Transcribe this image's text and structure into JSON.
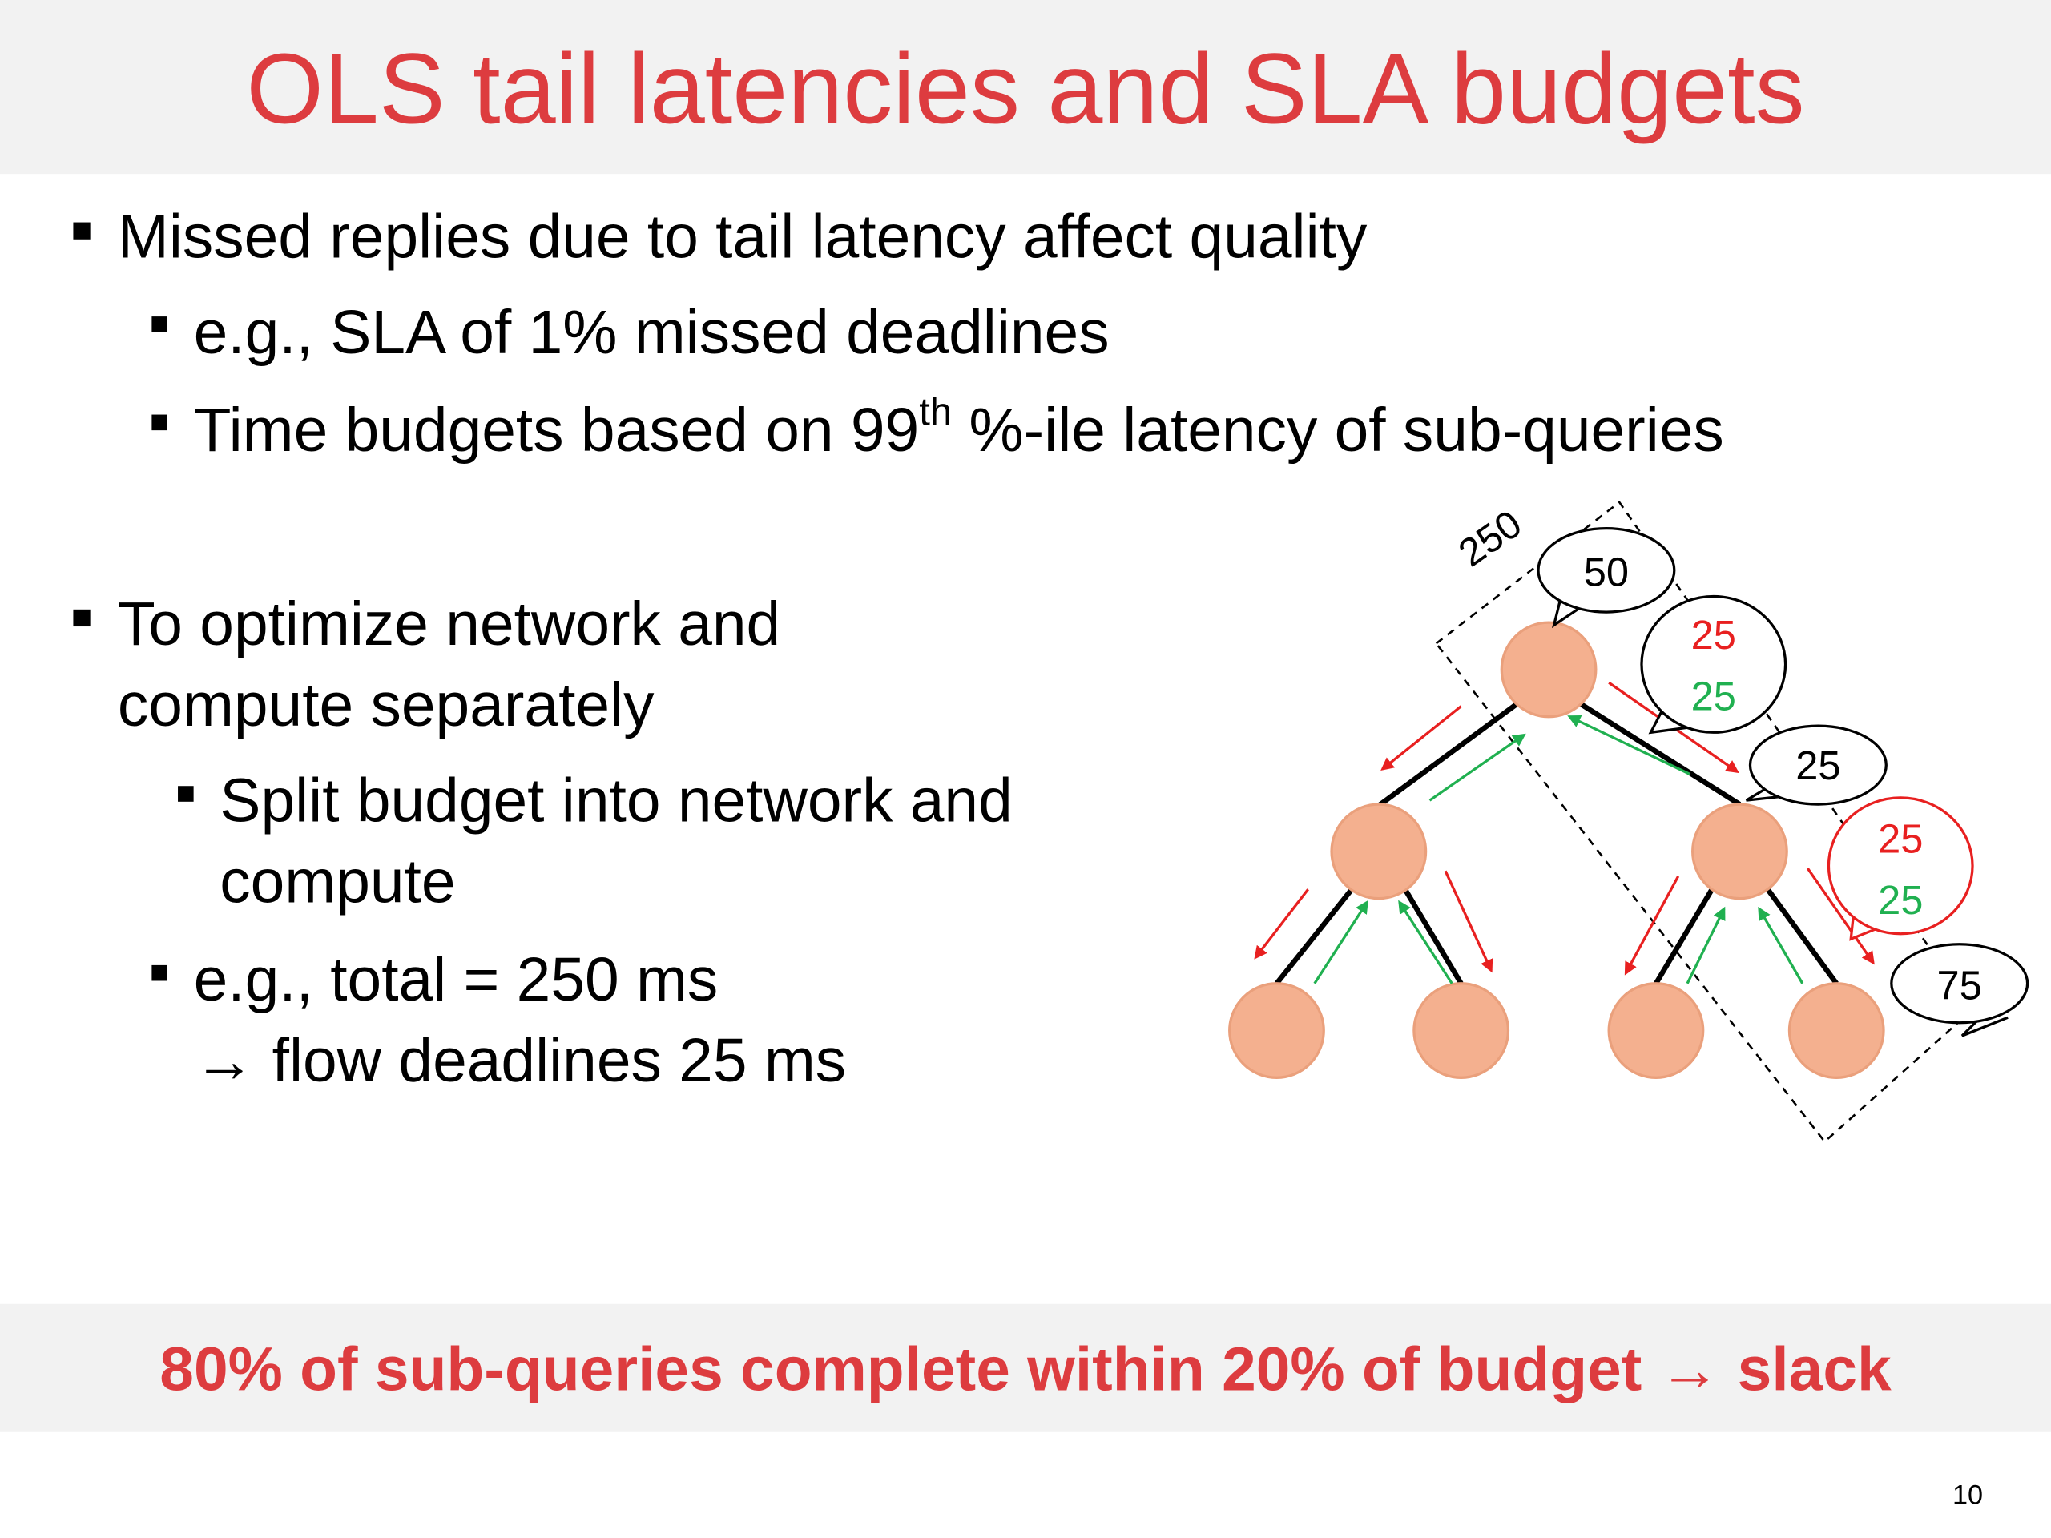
{
  "header": {
    "title": "OLS tail latencies and SLA budgets"
  },
  "bullets": [
    {
      "text": "Missed replies due to tail latency affect quality"
    },
    {
      "text": "e.g., SLA of 1% missed deadlines"
    },
    {
      "text_before": "Time budgets based on 99",
      "superscript": "th",
      "text_after": " %-ile latency of sub-queries"
    },
    {
      "lines": [
        "To optimize network and",
        "compute separately"
      ]
    },
    {
      "lines": [
        "Split budget into network and",
        "compute"
      ]
    },
    {
      "lines": [
        "e.g., total = 250 ms",
        "→ flow deadlines 25 ms"
      ]
    }
  ],
  "diagram": {
    "total_label": "250",
    "bubbles": [
      {
        "values": [
          50
        ]
      },
      {
        "values": [
          25,
          25
        ]
      },
      {
        "values": [
          25
        ]
      },
      {
        "values": [
          25,
          25
        ]
      },
      {
        "values": [
          75
        ]
      }
    ]
  },
  "footer": {
    "text": "80% of sub-queries complete within 20% of budget → slack"
  },
  "page_number": 10
}
